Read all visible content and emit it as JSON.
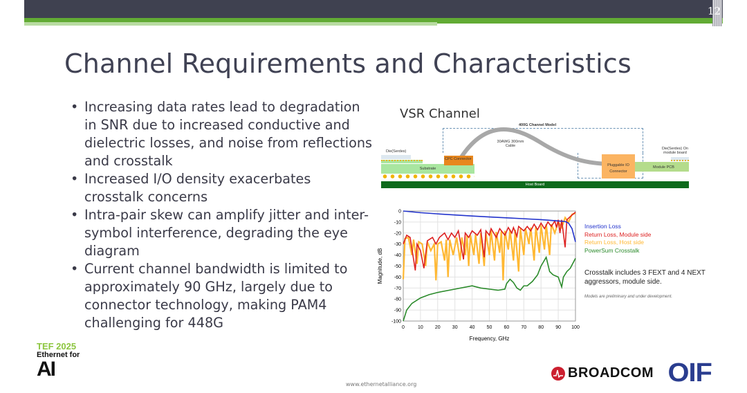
{
  "slide": {
    "page_number": "12",
    "title": "Channel Requirements and Characteristics",
    "bullets": [
      "Increasing data rates lead to degradation in SNR due to increased conductive and dielectric losses, and noise from reflections and crosstalk",
      "Increased I/O density exacerbates crosstalk concerns",
      "Intra-pair skew can amplify jitter and inter-symbol interference, degrading the eye diagram",
      "Current channel bandwidth is limited to approximately 90 GHz, largely due to connector technology, making PAM4 challenging for 448G"
    ],
    "footer_url": "www.ethernetalliance.org"
  },
  "diagram": {
    "heading": "VSR Channel",
    "model_label": "400G Channel Model",
    "cable_label": "30AWG 300mm Cable",
    "die_left": "Die(Serdes)",
    "die_right": "Die(Serdes) On module board",
    "cpc": "CPC Connector",
    "substrate": "Substrate",
    "pluggable": "Pluggable IO Connector",
    "module_pcb": "Module PCB",
    "host_board": "Host Board"
  },
  "logos": {
    "tef_line1": "TEF 2025",
    "tef_line2": "Ethernet for",
    "tef_line3": "AI",
    "broadcom": "BROADCOM",
    "oif": "OIF"
  },
  "colors": {
    "insertion": "#2233cc",
    "return_module": "#dd2020",
    "return_host": "#ffb833",
    "crosstalk": "#2a8a2a",
    "topbar": "#3f4150",
    "accent_green": "#62ab34"
  },
  "chart_data": {
    "type": "line",
    "title": "",
    "xlabel": "Frequency, GHz",
    "ylabel": "Magnitude, dB",
    "xlim": [
      0,
      100
    ],
    "ylim": [
      -100,
      0
    ],
    "xticks": [
      0,
      10,
      20,
      30,
      40,
      50,
      60,
      70,
      80,
      90,
      100
    ],
    "yticks": [
      0,
      -10,
      -20,
      -30,
      -40,
      -50,
      -60,
      -70,
      -80,
      -90,
      -100
    ],
    "grid": true,
    "legend_position": "right",
    "series": [
      {
        "name": "Insertion Loss",
        "color": "#2233cc",
        "points": [
          [
            0,
            0
          ],
          [
            10,
            -1.5
          ],
          [
            20,
            -2.6
          ],
          [
            30,
            -3.6
          ],
          [
            40,
            -4.5
          ],
          [
            50,
            -5.4
          ],
          [
            60,
            -6.2
          ],
          [
            70,
            -7
          ],
          [
            80,
            -7.8
          ],
          [
            90,
            -9
          ],
          [
            94,
            -9.5
          ],
          [
            96,
            -11
          ],
          [
            98,
            -16
          ],
          [
            99,
            -22
          ],
          [
            100,
            -28
          ]
        ]
      },
      {
        "name": "Return Loss, Module side",
        "color": "#dd2020",
        "points": [
          [
            0,
            -30
          ],
          [
            2,
            -22
          ],
          [
            4,
            -24
          ],
          [
            7,
            -54
          ],
          [
            8,
            -30
          ],
          [
            10,
            -36
          ],
          [
            12,
            -52
          ],
          [
            14,
            -27
          ],
          [
            17,
            -24
          ],
          [
            19,
            -30
          ],
          [
            21,
            -24
          ],
          [
            24,
            -20
          ],
          [
            26,
            -26
          ],
          [
            28,
            -20
          ],
          [
            30,
            -24
          ],
          [
            32,
            -18
          ],
          [
            35,
            -44
          ],
          [
            36,
            -20
          ],
          [
            38,
            -24
          ],
          [
            40,
            -18
          ],
          [
            43,
            -22
          ],
          [
            45,
            -17
          ],
          [
            47,
            -42
          ],
          [
            48,
            -18
          ],
          [
            50,
            -22
          ],
          [
            51,
            -16
          ],
          [
            54,
            -24
          ],
          [
            56,
            -16
          ],
          [
            59,
            -22
          ],
          [
            61,
            -15
          ],
          [
            63,
            -20
          ],
          [
            64,
            -15
          ],
          [
            66,
            -23
          ],
          [
            67,
            -14
          ],
          [
            70,
            -18
          ],
          [
            72,
            -14
          ],
          [
            74,
            -18
          ],
          [
            76,
            -12
          ],
          [
            78,
            -17
          ],
          [
            80,
            -11
          ],
          [
            82,
            -16
          ],
          [
            84,
            -10
          ],
          [
            86,
            -14
          ],
          [
            88,
            -9
          ],
          [
            89,
            -15
          ],
          [
            90,
            -8
          ],
          [
            91,
            -20
          ],
          [
            92,
            -8
          ],
          [
            94,
            -33
          ],
          [
            95,
            -8
          ],
          [
            97,
            -5
          ],
          [
            100,
            -1
          ]
        ]
      },
      {
        "name": "Return Loss, Host side",
        "color": "#ffb833",
        "points": [
          [
            0,
            -62
          ],
          [
            1,
            -25
          ],
          [
            3,
            -24
          ],
          [
            5,
            -40
          ],
          [
            6,
            -26
          ],
          [
            8,
            -48
          ],
          [
            9,
            -28
          ],
          [
            11,
            -30
          ],
          [
            13,
            -50
          ],
          [
            14,
            -28
          ],
          [
            16,
            -36
          ],
          [
            18,
            -30
          ],
          [
            19,
            -63
          ],
          [
            20,
            -30
          ],
          [
            22,
            -28
          ],
          [
            24,
            -45
          ],
          [
            25,
            -26
          ],
          [
            26,
            -60
          ],
          [
            27,
            -26
          ],
          [
            29,
            -40
          ],
          [
            31,
            -24
          ],
          [
            33,
            -45
          ],
          [
            34,
            -24
          ],
          [
            36,
            -40
          ],
          [
            37,
            -22
          ],
          [
            38,
            -50
          ],
          [
            39,
            -22
          ],
          [
            41,
            -40
          ],
          [
            42,
            -21
          ],
          [
            44,
            -48
          ],
          [
            45,
            -20
          ],
          [
            47,
            -50
          ],
          [
            48,
            -20
          ],
          [
            50,
            -40
          ],
          [
            51,
            -18
          ],
          [
            53,
            -45
          ],
          [
            54,
            -19
          ],
          [
            56,
            -38
          ],
          [
            57,
            -18
          ],
          [
            58,
            -63
          ],
          [
            59,
            -18
          ],
          [
            61,
            -35
          ],
          [
            62,
            -17
          ],
          [
            64,
            -45
          ],
          [
            65,
            -17
          ],
          [
            67,
            -55
          ],
          [
            68,
            -16
          ],
          [
            70,
            -40
          ],
          [
            71,
            -16
          ],
          [
            73,
            -30
          ],
          [
            74,
            -15
          ],
          [
            76,
            -45
          ],
          [
            77,
            -14
          ],
          [
            79,
            -38
          ],
          [
            80,
            -13
          ],
          [
            82,
            -35
          ],
          [
            83,
            -12
          ],
          [
            85,
            -40
          ],
          [
            86,
            -12
          ],
          [
            88,
            -20
          ],
          [
            90,
            -10
          ],
          [
            92,
            -15
          ],
          [
            94,
            -6
          ],
          [
            96,
            -10
          ],
          [
            98,
            -3
          ],
          [
            100,
            -2
          ]
        ]
      },
      {
        "name": "PowerSum Crosstalk",
        "color": "#2a8a2a",
        "points": [
          [
            0,
            -100
          ],
          [
            2,
            -90
          ],
          [
            5,
            -84
          ],
          [
            10,
            -79
          ],
          [
            15,
            -76
          ],
          [
            20,
            -74
          ],
          [
            30,
            -71
          ],
          [
            40,
            -68
          ],
          [
            45,
            -70
          ],
          [
            50,
            -71
          ],
          [
            55,
            -72
          ],
          [
            59,
            -71
          ],
          [
            60,
            -66
          ],
          [
            62,
            -62
          ],
          [
            64,
            -65
          ],
          [
            66,
            -70
          ],
          [
            68,
            -72
          ],
          [
            70,
            -68
          ],
          [
            72,
            -68
          ],
          [
            75,
            -64
          ],
          [
            78,
            -58
          ],
          [
            80,
            -50
          ],
          [
            83,
            -42
          ],
          [
            85,
            -55
          ],
          [
            87,
            -58
          ],
          [
            90,
            -60
          ],
          [
            92,
            -69
          ],
          [
            93,
            -60
          ],
          [
            95,
            -55
          ],
          [
            97,
            -52
          ],
          [
            100,
            -43
          ]
        ]
      }
    ],
    "annotations": [
      "Crosstalk includes 3 FEXT and 4 NEXT aggressors, module side.",
      "Models are preliminary and under development."
    ]
  }
}
